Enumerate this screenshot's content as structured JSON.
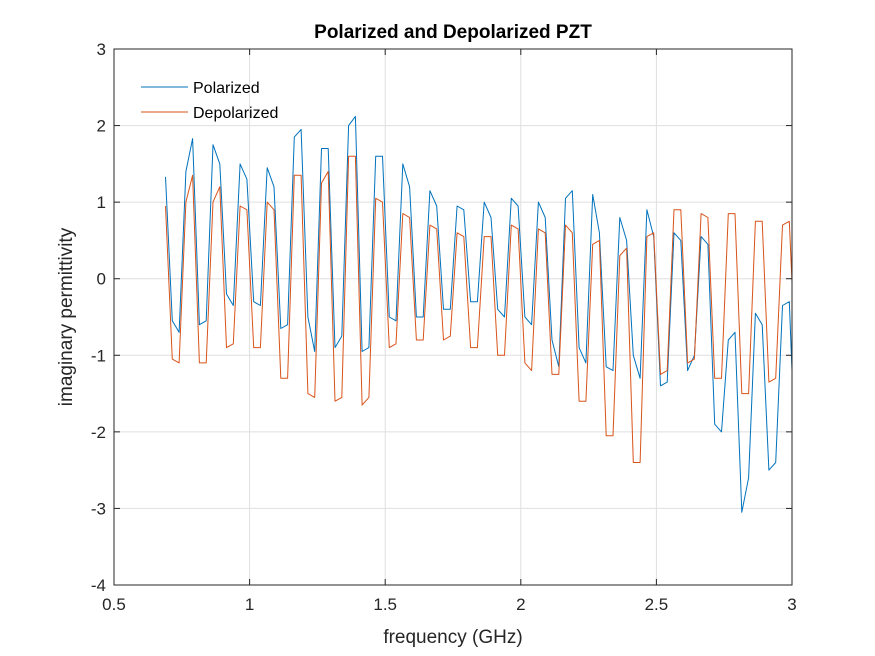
{
  "chart_data": {
    "type": "line",
    "title": "Polarized and Depolarized PZT",
    "xlabel": "frequency (GHz)",
    "ylabel": "imaginary permittivity",
    "xlim": [
      0.5,
      3
    ],
    "ylim": [
      -4,
      3
    ],
    "xticks": [
      0.5,
      1,
      1.5,
      2,
      2.5,
      3
    ],
    "xtick_labels": [
      "0.5",
      "1",
      "1.5",
      "2",
      "2.5",
      "3"
    ],
    "yticks": [
      -4,
      -3,
      -2,
      -1,
      0,
      1,
      2,
      3
    ],
    "ytick_labels": [
      "-4",
      "-3",
      "-2",
      "-1",
      "0",
      "1",
      "2",
      "3"
    ],
    "grid": true,
    "legend": "top-left",
    "series": [
      {
        "name": "Polarized",
        "color": "#0072BD",
        "x": [
          0.69,
          0.715,
          0.74,
          0.765,
          0.79,
          0.815,
          0.84,
          0.865,
          0.89,
          0.915,
          0.94,
          0.965,
          0.99,
          1.015,
          1.04,
          1.065,
          1.09,
          1.115,
          1.14,
          1.165,
          1.19,
          1.215,
          1.24,
          1.265,
          1.29,
          1.315,
          1.34,
          1.365,
          1.39,
          1.415,
          1.44,
          1.465,
          1.49,
          1.515,
          1.54,
          1.565,
          1.59,
          1.615,
          1.64,
          1.665,
          1.69,
          1.715,
          1.74,
          1.765,
          1.79,
          1.815,
          1.84,
          1.865,
          1.89,
          1.915,
          1.94,
          1.965,
          1.99,
          2.015,
          2.04,
          2.065,
          2.09,
          2.115,
          2.14,
          2.165,
          2.19,
          2.215,
          2.24,
          2.265,
          2.29,
          2.315,
          2.34,
          2.365,
          2.39,
          2.415,
          2.44,
          2.465,
          2.49,
          2.515,
          2.54,
          2.565,
          2.59,
          2.615,
          2.64,
          2.665,
          2.69,
          2.715,
          2.74,
          2.765,
          2.79,
          2.815,
          2.84,
          2.865,
          2.89,
          2.915,
          2.94,
          2.965,
          2.99,
          3.0
        ],
        "y": [
          1.33,
          -0.55,
          -0.7,
          1.4,
          1.83,
          -0.6,
          -0.55,
          1.75,
          1.5,
          -0.2,
          -0.35,
          1.5,
          1.3,
          -0.3,
          -0.35,
          1.45,
          1.2,
          -0.65,
          -0.6,
          1.85,
          1.95,
          -0.5,
          -0.95,
          1.7,
          1.7,
          -0.9,
          -0.75,
          2.0,
          2.12,
          -0.95,
          -0.9,
          1.6,
          1.6,
          -0.5,
          -0.55,
          1.5,
          1.2,
          -0.5,
          -0.5,
          1.15,
          0.95,
          -0.4,
          -0.4,
          0.95,
          0.9,
          -0.3,
          -0.3,
          1.0,
          0.8,
          -0.4,
          -0.5,
          1.05,
          0.95,
          -0.5,
          -0.6,
          1.0,
          0.8,
          -0.8,
          -1.15,
          1.05,
          1.15,
          -0.9,
          -1.1,
          1.1,
          0.6,
          -1.15,
          -1.2,
          0.8,
          0.5,
          -1.0,
          -1.3,
          0.9,
          0.55,
          -1.4,
          -1.35,
          0.6,
          0.5,
          -1.2,
          -1.0,
          0.55,
          0.45,
          -1.9,
          -2.0,
          -0.8,
          -0.7,
          -3.05,
          -2.6,
          -0.45,
          -0.6,
          -2.5,
          -2.4,
          -0.35,
          -0.3,
          -1.2
        ]
      },
      {
        "name": "Depolarized",
        "color": "#D95319",
        "x": [
          0.69,
          0.715,
          0.74,
          0.765,
          0.79,
          0.815,
          0.84,
          0.865,
          0.89,
          0.915,
          0.94,
          0.965,
          0.99,
          1.015,
          1.04,
          1.065,
          1.09,
          1.115,
          1.14,
          1.165,
          1.19,
          1.215,
          1.24,
          1.265,
          1.29,
          1.315,
          1.34,
          1.365,
          1.39,
          1.415,
          1.44,
          1.465,
          1.49,
          1.515,
          1.54,
          1.565,
          1.59,
          1.615,
          1.64,
          1.665,
          1.69,
          1.715,
          1.74,
          1.765,
          1.79,
          1.815,
          1.84,
          1.865,
          1.89,
          1.915,
          1.94,
          1.965,
          1.99,
          2.015,
          2.04,
          2.065,
          2.09,
          2.115,
          2.14,
          2.165,
          2.19,
          2.215,
          2.24,
          2.265,
          2.29,
          2.315,
          2.34,
          2.365,
          2.39,
          2.415,
          2.44,
          2.465,
          2.49,
          2.515,
          2.54,
          2.565,
          2.59,
          2.615,
          2.64,
          2.665,
          2.69,
          2.715,
          2.74,
          2.765,
          2.79,
          2.815,
          2.84,
          2.865,
          2.89,
          2.915,
          2.94,
          2.965,
          2.99,
          3.0
        ],
        "y": [
          0.95,
          -1.05,
          -1.1,
          1.0,
          1.35,
          -1.1,
          -1.1,
          1.0,
          1.2,
          -0.9,
          -0.85,
          0.95,
          0.9,
          -0.9,
          -0.9,
          1.0,
          0.9,
          -1.3,
          -1.3,
          1.35,
          1.35,
          -1.5,
          -1.55,
          1.25,
          1.4,
          -1.6,
          -1.55,
          1.6,
          1.6,
          -1.65,
          -1.55,
          1.05,
          1.0,
          -0.9,
          -0.85,
          0.85,
          0.8,
          -0.8,
          -0.8,
          0.7,
          0.65,
          -0.8,
          -0.75,
          0.6,
          0.55,
          -0.9,
          -0.9,
          0.55,
          0.55,
          -1.0,
          -1.0,
          0.7,
          0.65,
          -1.1,
          -1.2,
          0.65,
          0.6,
          -1.25,
          -1.25,
          0.7,
          0.6,
          -1.6,
          -1.6,
          0.45,
          0.5,
          -2.05,
          -2.05,
          0.3,
          0.4,
          -2.4,
          -2.4,
          0.55,
          0.6,
          -1.25,
          -1.2,
          0.9,
          0.9,
          -1.1,
          -1.05,
          0.85,
          0.8,
          -1.3,
          -1.3,
          0.85,
          0.85,
          -1.5,
          -1.5,
          0.75,
          0.75,
          -1.35,
          -1.3,
          0.7,
          0.75,
          -0.05
        ]
      }
    ]
  }
}
